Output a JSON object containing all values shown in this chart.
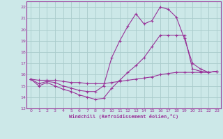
{
  "xlabel": "Windchill (Refroidissement éolien,°C)",
  "xlim": [
    -0.5,
    23.5
  ],
  "ylim": [
    13,
    22.5
  ],
  "xticks": [
    0,
    1,
    2,
    3,
    4,
    5,
    6,
    7,
    8,
    9,
    10,
    11,
    12,
    13,
    14,
    15,
    16,
    17,
    18,
    19,
    20,
    21,
    22,
    23
  ],
  "yticks": [
    13,
    14,
    15,
    16,
    17,
    18,
    19,
    20,
    21,
    22
  ],
  "background_color": "#cce8e8",
  "line_color": "#993399",
  "grid_color": "#aacccc",
  "line1_x": [
    0,
    1,
    2,
    3,
    4,
    5,
    6,
    7,
    8,
    9,
    10,
    11,
    12,
    13,
    14,
    15,
    16,
    17,
    18,
    19,
    20,
    21,
    22,
    23
  ],
  "line1_y": [
    15.6,
    15.5,
    15.5,
    15.5,
    15.4,
    15.3,
    15.3,
    15.2,
    15.2,
    15.2,
    15.3,
    15.4,
    15.5,
    15.6,
    15.7,
    15.8,
    16.0,
    16.1,
    16.2,
    16.2,
    16.2,
    16.2,
    16.2,
    16.3
  ],
  "line2_x": [
    0,
    1,
    2,
    3,
    4,
    5,
    6,
    7,
    8,
    9,
    10,
    11,
    12,
    13,
    14,
    15,
    16,
    17,
    18,
    19,
    20,
    21,
    22,
    23
  ],
  "line2_y": [
    15.6,
    15.0,
    15.3,
    15.0,
    14.7,
    14.5,
    14.2,
    14.0,
    13.8,
    13.9,
    14.8,
    15.5,
    16.2,
    16.8,
    17.5,
    18.5,
    19.5,
    19.5,
    19.5,
    19.5,
    16.5,
    16.3,
    16.2,
    16.3
  ],
  "line3_x": [
    0,
    1,
    2,
    3,
    4,
    5,
    6,
    7,
    8,
    9,
    10,
    11,
    12,
    13,
    14,
    15,
    16,
    17,
    18,
    19,
    20,
    21,
    22,
    23
  ],
  "line3_y": [
    15.6,
    15.2,
    15.4,
    15.3,
    15.0,
    14.8,
    14.6,
    14.5,
    14.5,
    15.0,
    17.5,
    19.0,
    20.3,
    21.4,
    20.5,
    20.8,
    22.0,
    21.8,
    21.1,
    19.2,
    17.0,
    16.5,
    16.2,
    16.3
  ]
}
